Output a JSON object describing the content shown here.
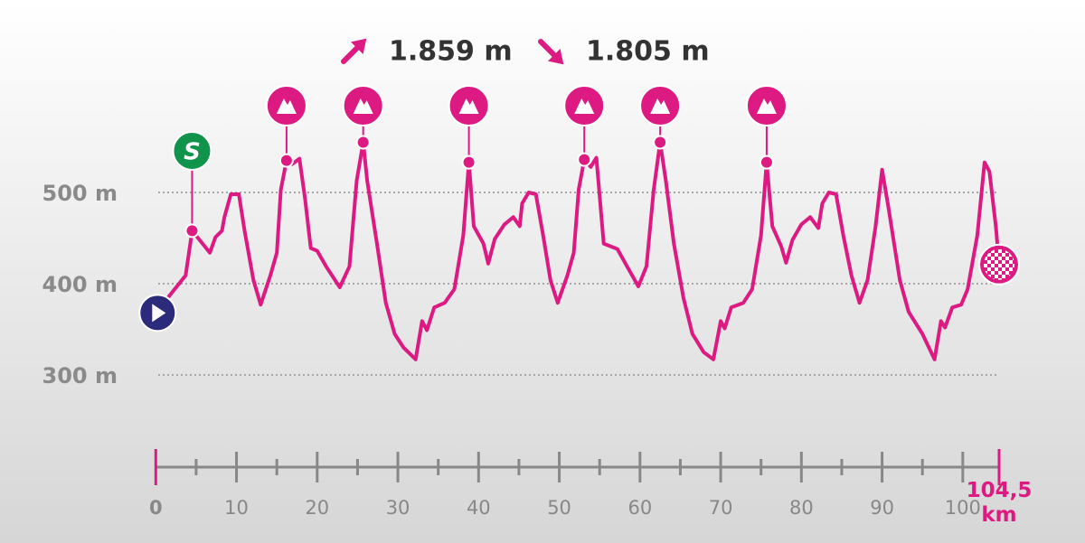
{
  "chart_data": {
    "type": "line",
    "ascent": "1.859 m",
    "descent": "1.805 m",
    "color": "#dc1a82",
    "x": [
      0,
      3.7,
      4.5,
      5.6,
      6.7,
      7.4,
      8.2,
      8.5,
      9.3,
      10.3,
      11,
      12.1,
      13,
      14.2,
      15,
      15.5,
      16.2,
      16.9,
      17.8,
      18.5,
      19.2,
      20,
      21.1,
      22.8,
      24,
      24.9,
      25.7,
      26.2,
      27.4,
      28.5,
      29.6,
      30.7,
      32.2,
      33,
      33.6,
      34.5,
      35.8,
      37,
      38.1,
      38.8,
      39.4,
      40.6,
      41.2,
      42,
      43.2,
      44.3,
      45.1,
      45.4,
      46.2,
      47.1,
      48,
      48.9,
      49.8,
      51,
      51.8,
      52.4,
      53.1,
      53.9,
      54.6,
      55.5,
      57.2,
      58.4,
      59.8,
      60.8,
      61.7,
      62.5,
      63.2,
      64.2,
      65.4,
      66.5,
      67.9,
      69.1,
      70,
      70.5,
      71.3,
      72.8,
      73.9,
      75,
      75.7,
      76.4,
      77.5,
      78.1,
      78.9,
      80,
      81.1,
      82.1,
      82.6,
      83.4,
      84.3,
      85.2,
      86.2,
      87.2,
      88.2,
      89.2,
      90,
      90.8,
      92.2,
      93.3,
      95,
      96.5,
      97.3,
      97.8,
      98.7,
      99.8,
      100.6,
      101.8,
      102.7,
      103.3,
      104.1,
      104.5
    ],
    "values": [
      368,
      409,
      458,
      446,
      434,
      451,
      458,
      473,
      498,
      498,
      458,
      404,
      377,
      409,
      434,
      503,
      535,
      531,
      537,
      493,
      439,
      436,
      419,
      396,
      419,
      513,
      555,
      513,
      444,
      379,
      345,
      330,
      317,
      359,
      349,
      374,
      379,
      394,
      453,
      533,
      463,
      444,
      422,
      449,
      465,
      473,
      463,
      488,
      500,
      498,
      453,
      404,
      379,
      409,
      434,
      503,
      536,
      528,
      538,
      444,
      438,
      419,
      397,
      419,
      503,
      555,
      513,
      444,
      384,
      345,
      325,
      317,
      359,
      351,
      374,
      379,
      394,
      453,
      533,
      463,
      441,
      423,
      448,
      465,
      473,
      461,
      488,
      500,
      498,
      453,
      409,
      379,
      404,
      463,
      525,
      483,
      404,
      369,
      345,
      317,
      359,
      352,
      374,
      377,
      394,
      453,
      533,
      523,
      463,
      421
    ],
    "sprint": {
      "label": "S",
      "x": 4.5,
      "y": 458
    },
    "climbs": [
      {
        "x": 16.2,
        "y": 535
      },
      {
        "x": 25.7,
        "y": 555
      },
      {
        "x": 38.8,
        "y": 533
      },
      {
        "x": 53.1,
        "y": 536
      },
      {
        "x": 62.5,
        "y": 555
      },
      {
        "x": 75.7,
        "y": 533
      }
    ],
    "xlim": [
      0,
      104.5
    ],
    "xticks": [
      0,
      10,
      20,
      30,
      40,
      50,
      60,
      70,
      80,
      90,
      100,
      {
        "value": 104.5,
        "label": "104,5 km"
      }
    ],
    "xminorticks": [
      5,
      15,
      25,
      35,
      45,
      55,
      65,
      75,
      85,
      95
    ],
    "ylim": [
      300,
      500
    ],
    "yticks": [
      {
        "value": 300,
        "label": "300 m"
      },
      {
        "value": 400,
        "label": "400 m"
      },
      {
        "value": 500,
        "label": "500 m"
      }
    ],
    "grid": true
  }
}
